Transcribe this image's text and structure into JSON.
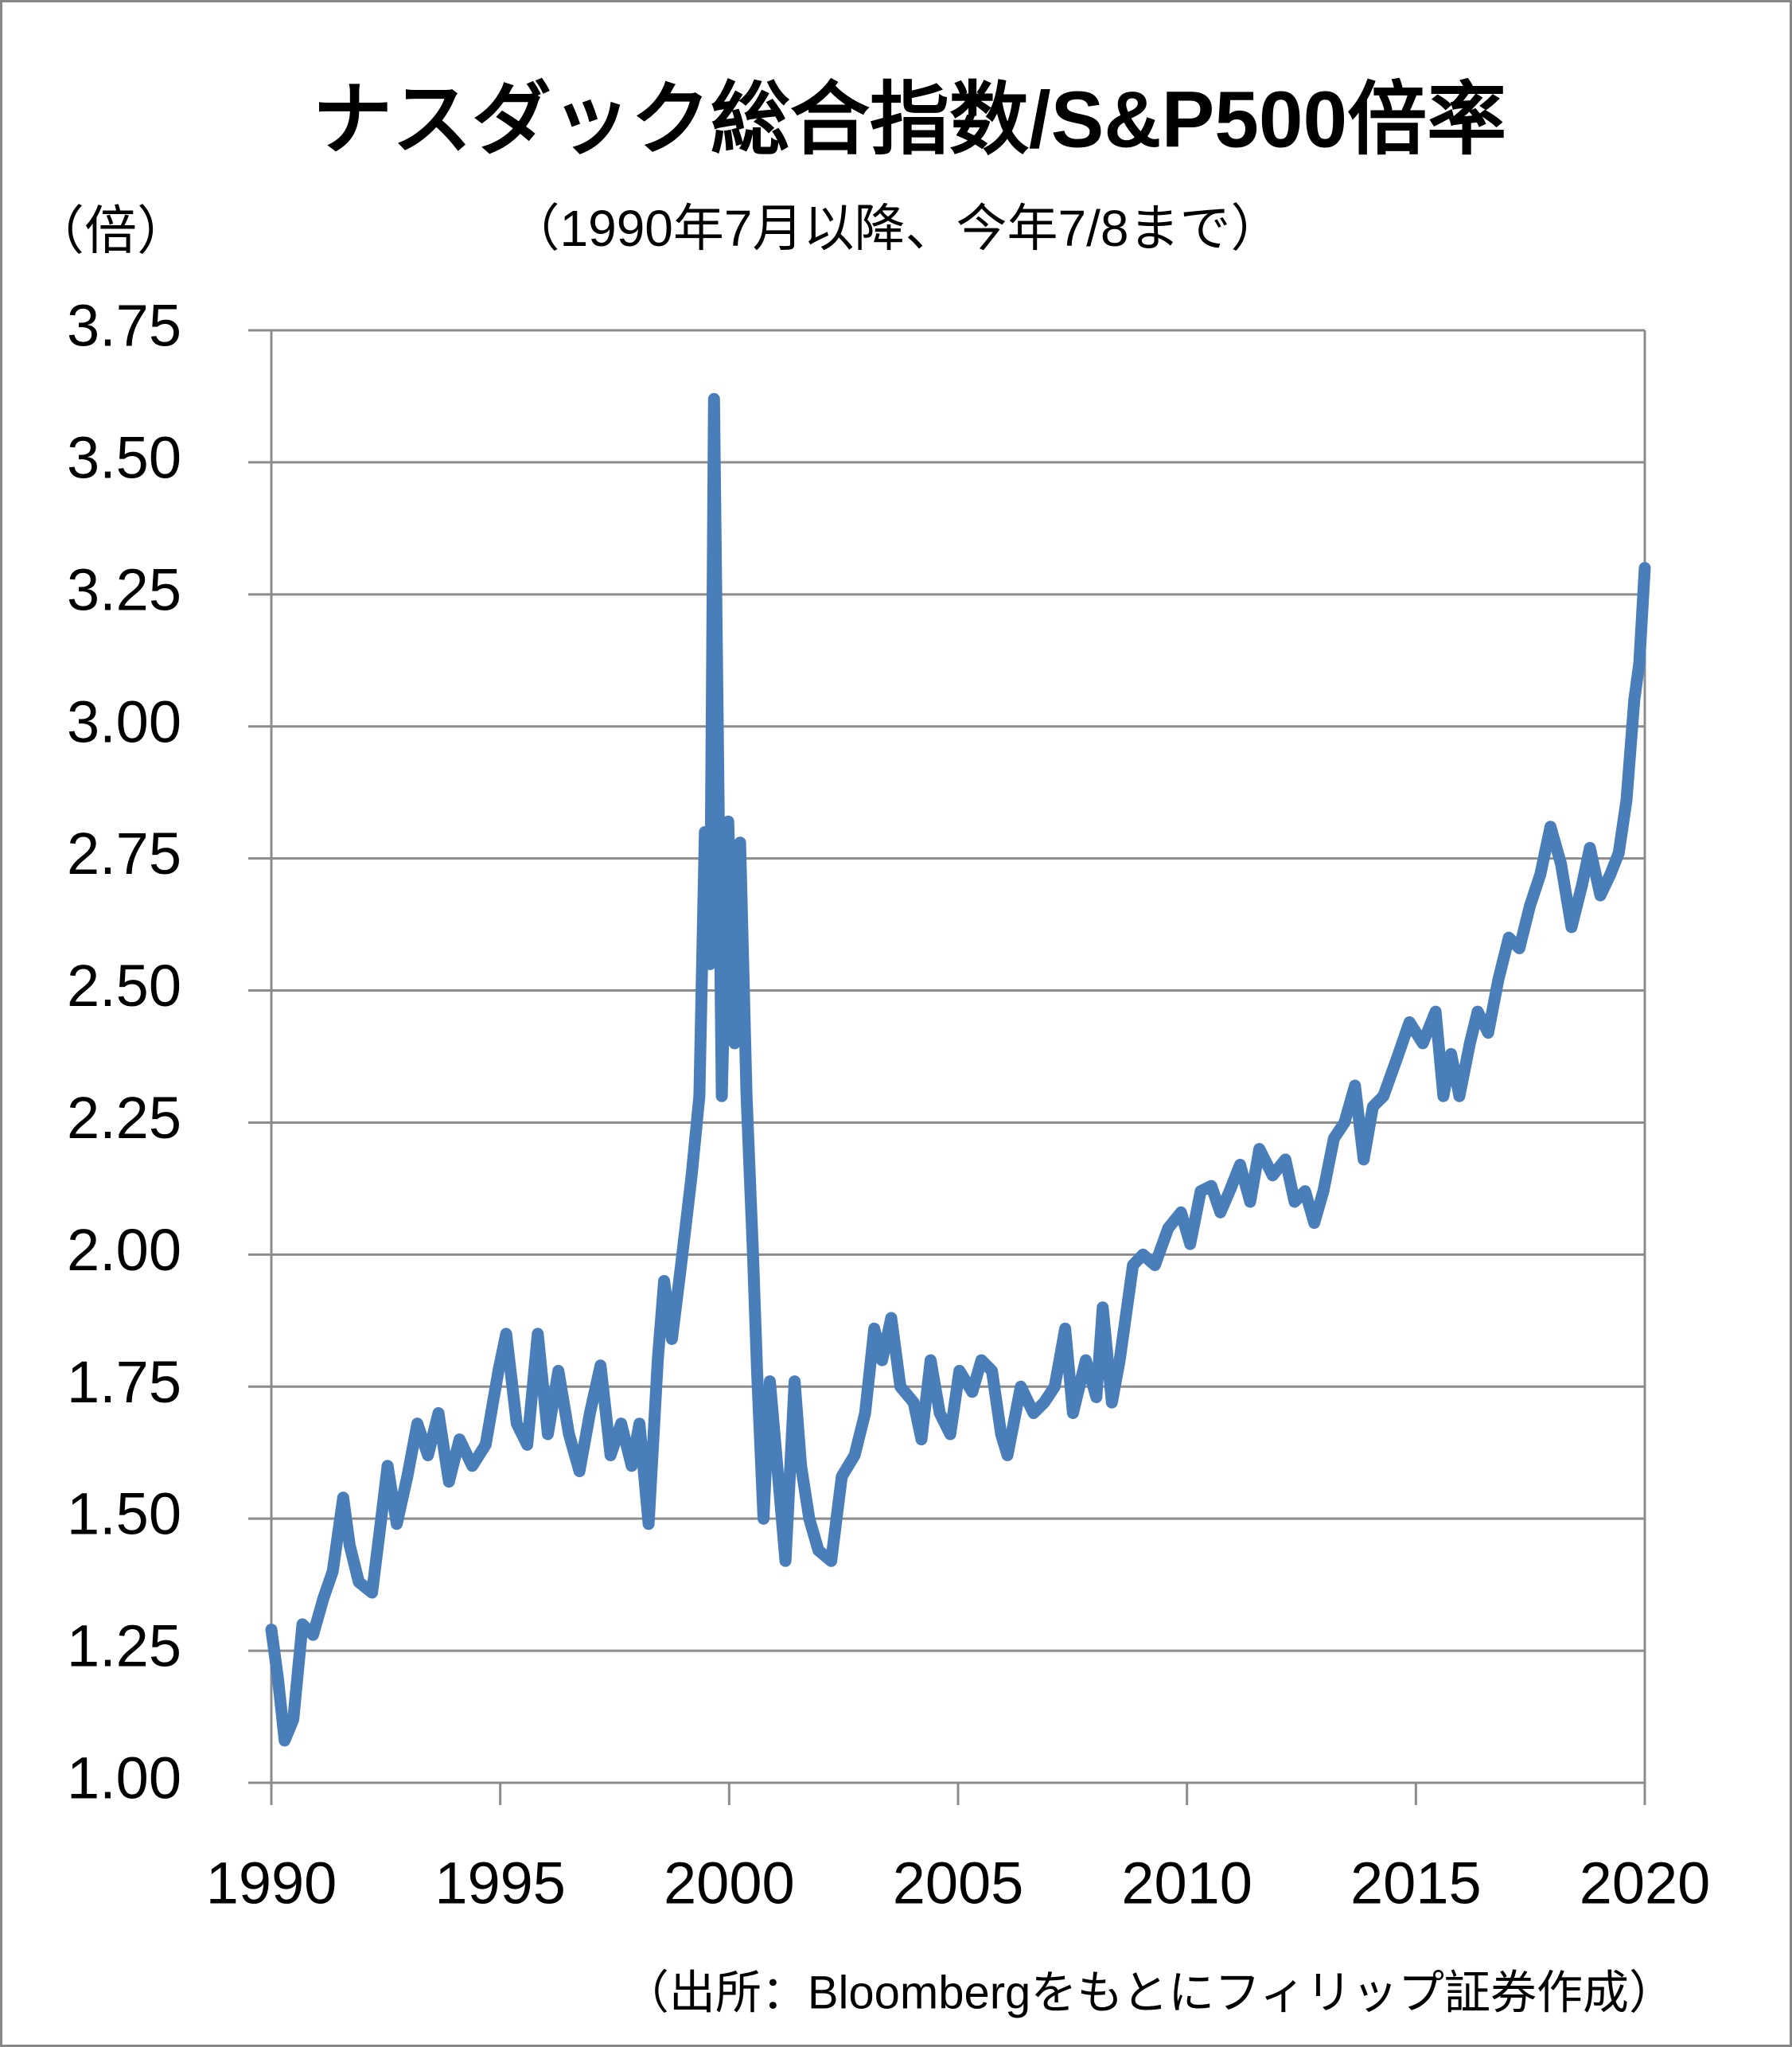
{
  "chart_data": {
    "type": "line",
    "title": "ナスダック総合指数/S&P500倍率",
    "subtitle": "（1990年7月以降、今年7/8まで）",
    "y_label": "（倍）",
    "source": "（出所：Bloombergをもとにフィリップ証券作成）",
    "xlim": [
      1990,
      2020
    ],
    "xticks": [
      1990,
      1995,
      2000,
      2005,
      2010,
      2015,
      2020
    ],
    "ylim": [
      1.0,
      3.75
    ],
    "yticks": [
      {
        "value": 1.0,
        "label": "1.00"
      },
      {
        "value": 1.25,
        "label": "1.25"
      },
      {
        "value": 1.5,
        "label": "1.50"
      },
      {
        "value": 1.75,
        "label": "1.75"
      },
      {
        "value": 2.0,
        "label": "2.00"
      },
      {
        "value": 2.25,
        "label": "2.25"
      },
      {
        "value": 2.5,
        "label": "2.50"
      },
      {
        "value": 2.75,
        "label": "2.75"
      },
      {
        "value": 3.0,
        "label": "3.00"
      },
      {
        "value": 3.25,
        "label": "3.25"
      },
      {
        "value": 3.5,
        "label": "3.50"
      },
      {
        "value": 3.75,
        "label": "3.75"
      }
    ],
    "grid": true,
    "x": [
      1990.0,
      1990.14,
      1990.29,
      1990.48,
      1990.68,
      1990.91,
      1991.14,
      1991.34,
      1991.57,
      1991.71,
      1991.91,
      1992.2,
      1992.4,
      1992.54,
      1992.74,
      1992.97,
      1993.19,
      1993.42,
      1993.65,
      1993.88,
      1994.11,
      1994.39,
      1994.68,
      1994.96,
      1995.13,
      1995.36,
      1995.59,
      1995.82,
      1996.04,
      1996.27,
      1996.5,
      1996.73,
      1996.96,
      1997.19,
      1997.41,
      1997.64,
      1997.87,
      1998.04,
      1998.24,
      1998.44,
      1998.58,
      1998.75,
      1998.95,
      1999.18,
      1999.35,
      1999.47,
      1999.58,
      1999.67,
      1999.75,
      1999.84,
      1999.98,
      2000.12,
      2000.24,
      2000.38,
      2000.52,
      2000.61,
      2000.75,
      2000.89,
      2001.03,
      2001.23,
      2001.43,
      2001.57,
      2001.75,
      2001.95,
      2002.23,
      2002.46,
      2002.74,
      2002.97,
      2003.17,
      2003.34,
      2003.54,
      2003.74,
      2004.03,
      2004.2,
      2004.4,
      2004.6,
      2004.83,
      2005.03,
      2005.31,
      2005.51,
      2005.74,
      2005.94,
      2006.08,
      2006.37,
      2006.65,
      2006.88,
      2007.11,
      2007.34,
      2007.51,
      2007.79,
      2008.02,
      2008.16,
      2008.36,
      2008.53,
      2008.82,
      2009.04,
      2009.3,
      2009.59,
      2009.87,
      2010.07,
      2010.3,
      2010.53,
      2010.73,
      2010.93,
      2011.16,
      2011.38,
      2011.58,
      2011.87,
      2012.15,
      2012.35,
      2012.58,
      2012.78,
      2012.98,
      2013.21,
      2013.44,
      2013.67,
      2013.86,
      2014.06,
      2014.29,
      2014.58,
      2014.86,
      2015.15,
      2015.43,
      2015.6,
      2015.77,
      2015.95,
      2016.18,
      2016.35,
      2016.58,
      2016.8,
      2017.03,
      2017.26,
      2017.49,
      2017.72,
      2017.94,
      2018.17,
      2018.4,
      2018.63,
      2018.8,
      2019.03,
      2019.25,
      2019.43,
      2019.6,
      2019.77,
      2019.88,
      2020.0
    ],
    "series": [
      {
        "color": "#4a7ebb",
        "values": [
          1.29,
          1.2,
          1.08,
          1.12,
          1.3,
          1.28,
          1.35,
          1.4,
          1.54,
          1.45,
          1.38,
          1.36,
          1.5,
          1.6,
          1.49,
          1.58,
          1.68,
          1.62,
          1.7,
          1.57,
          1.65,
          1.6,
          1.64,
          1.78,
          1.85,
          1.68,
          1.64,
          1.85,
          1.66,
          1.78,
          1.66,
          1.59,
          1.7,
          1.79,
          1.62,
          1.68,
          1.6,
          1.68,
          1.49,
          1.8,
          1.95,
          1.84,
          1.98,
          2.15,
          2.3,
          2.8,
          2.55,
          3.62,
          3.0,
          2.3,
          2.82,
          2.4,
          2.78,
          2.3,
          2.0,
          1.78,
          1.5,
          1.76,
          1.62,
          1.42,
          1.76,
          1.6,
          1.5,
          1.44,
          1.42,
          1.58,
          1.62,
          1.7,
          1.86,
          1.8,
          1.88,
          1.75,
          1.72,
          1.65,
          1.8,
          1.7,
          1.66,
          1.78,
          1.74,
          1.8,
          1.78,
          1.66,
          1.62,
          1.75,
          1.7,
          1.72,
          1.75,
          1.86,
          1.7,
          1.8,
          1.73,
          1.9,
          1.72,
          1.8,
          1.98,
          2.0,
          1.98,
          2.05,
          2.08,
          2.02,
          2.12,
          2.13,
          2.08,
          2.12,
          2.17,
          2.1,
          2.2,
          2.15,
          2.18,
          2.1,
          2.12,
          2.06,
          2.12,
          2.22,
          2.25,
          2.32,
          2.18,
          2.28,
          2.3,
          2.37,
          2.44,
          2.4,
          2.46,
          2.3,
          2.38,
          2.3,
          2.4,
          2.46,
          2.42,
          2.52,
          2.6,
          2.58,
          2.66,
          2.72,
          2.81,
          2.74,
          2.62,
          2.7,
          2.77,
          2.68,
          2.72,
          2.76,
          2.86,
          3.05,
          3.12,
          3.3
        ]
      }
    ]
  }
}
